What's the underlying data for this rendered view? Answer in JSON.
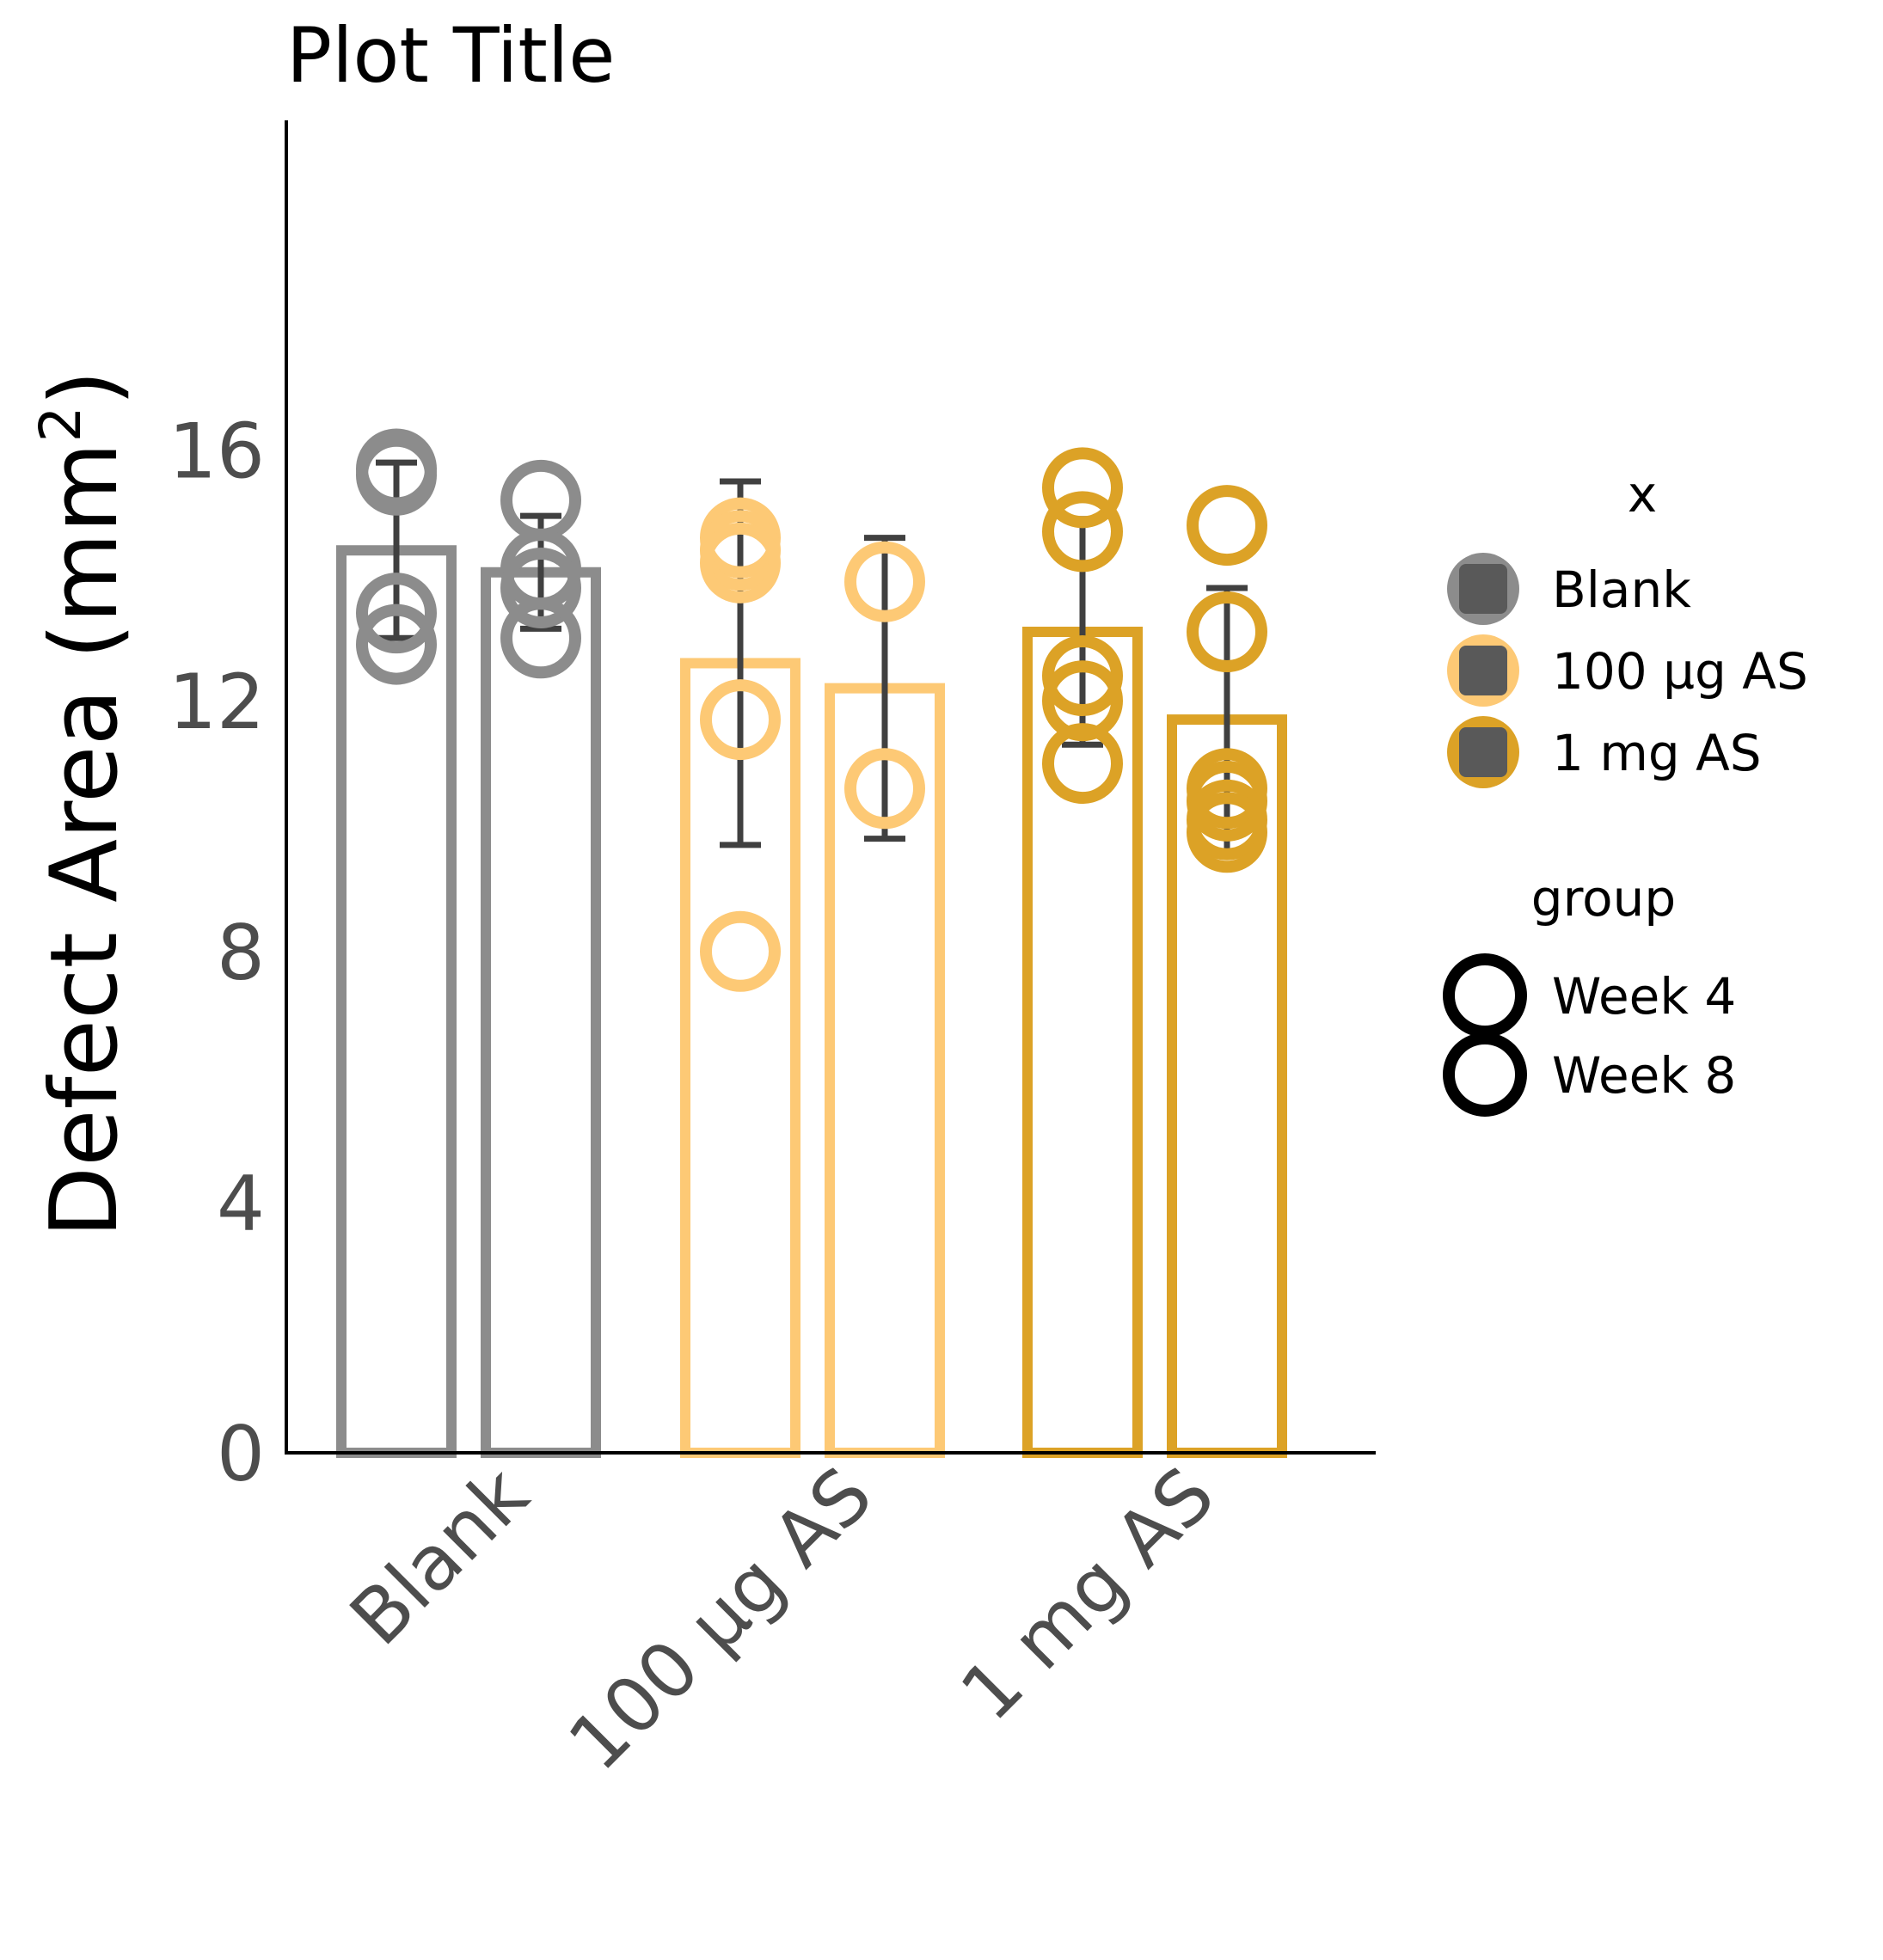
{
  "chart_data": {
    "type": "bar",
    "title": "Plot Title",
    "xlabel": "",
    "ylabel": "Defect Area (mm",
    "ylabel_superscript": "2",
    "ylabel_close": ")",
    "ylim": [
      0,
      17
    ],
    "yticks": [
      0,
      4,
      8,
      12,
      16
    ],
    "categories": [
      "Blank",
      "100 µg AS",
      "1 mg AS"
    ],
    "colors": {
      "Blank": "#8c8c8c",
      "100 µg AS": "#fdc975",
      "1 mg AS": "#dca226"
    },
    "errorbar_color": "#404040",
    "series": [
      {
        "name": "Week 4",
        "values": [
          14.4,
          12.6,
          13.1
        ],
        "error": [
          1.4,
          2.9,
          1.8
        ],
        "points": [
          [
            15.7,
            15.6,
            13.4,
            12.9
          ],
          [
            14.6,
            14.4,
            14.2,
            11.7,
            8.0
          ],
          [
            15.4,
            14.7,
            12.4,
            12.0,
            11.0
          ]
        ]
      },
      {
        "name": "Week 8",
        "values": [
          14.05,
          12.2,
          11.7
        ],
        "error": [
          0.9,
          2.4,
          2.1
        ],
        "points": [
          [
            15.2,
            14.1,
            13.8,
            13.0
          ],
          [
            13.9,
            10.6
          ],
          [
            14.8,
            13.1,
            10.6,
            10.4,
            10.1,
            9.9
          ]
        ]
      }
    ],
    "legend": {
      "position": "right",
      "color_title": "x",
      "color_entries": [
        "Blank",
        "100 µg AS",
        "1 mg AS"
      ],
      "shape_title": "group",
      "shape_entries": [
        "Week 4",
        "Week 8"
      ]
    }
  }
}
